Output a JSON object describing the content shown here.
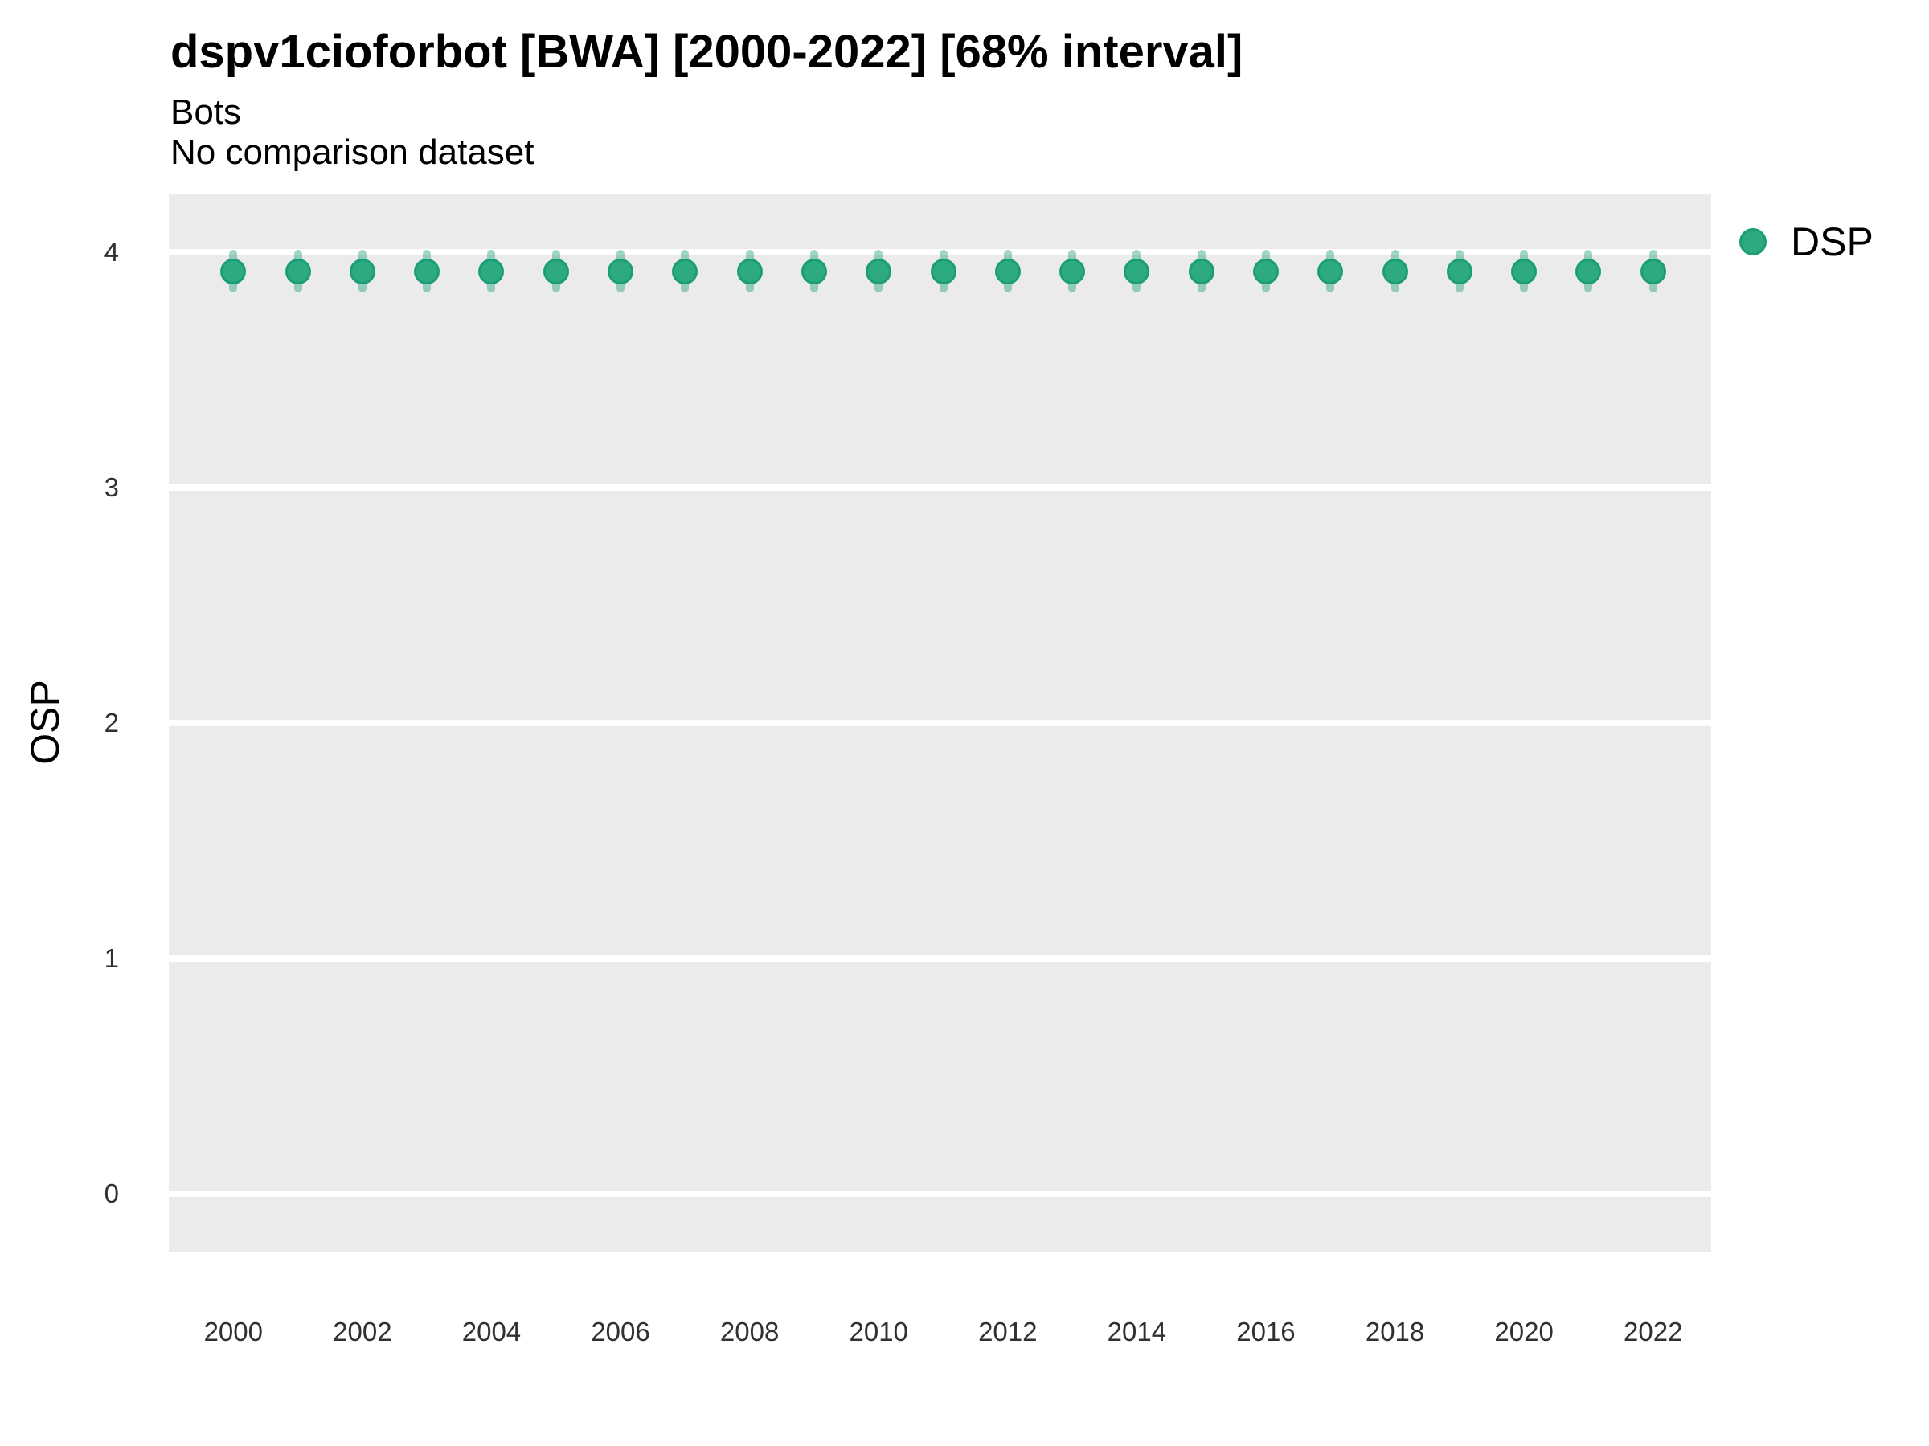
{
  "chart": {
    "title": "dspv1cioforbot [BWA] [2000-2022] [68% interval]",
    "subtitle1": "Bots",
    "subtitle2": "No comparison dataset",
    "y_axis_label": "OSP",
    "legend": {
      "label": "DSP"
    }
  },
  "chart_data": {
    "type": "scatter",
    "variant": "pointrange",
    "title": "dspv1cioforbot [BWA] [2000-2022] [68% interval]",
    "subtitle": [
      "Bots",
      "No comparison dataset"
    ],
    "xlabel": "",
    "ylabel": "OSP",
    "legend_position": "right",
    "grid": true,
    "interval_label": "68% interval",
    "x": [
      2000,
      2001,
      2002,
      2003,
      2004,
      2005,
      2006,
      2007,
      2008,
      2009,
      2010,
      2011,
      2012,
      2013,
      2014,
      2015,
      2016,
      2017,
      2018,
      2019,
      2020,
      2021,
      2022
    ],
    "series": [
      {
        "name": "DSP",
        "values": [
          3.92,
          3.92,
          3.92,
          3.92,
          3.92,
          3.92,
          3.92,
          3.92,
          3.92,
          3.92,
          3.92,
          3.92,
          3.92,
          3.92,
          3.92,
          3.92,
          3.92,
          3.92,
          3.92,
          3.92,
          3.92,
          3.92,
          3.92
        ],
        "interval_low": [
          3.83,
          3.83,
          3.83,
          3.83,
          3.83,
          3.83,
          3.83,
          3.83,
          3.83,
          3.83,
          3.83,
          3.83,
          3.83,
          3.83,
          3.83,
          3.83,
          3.83,
          3.83,
          3.83,
          3.83,
          3.83,
          3.83,
          3.83
        ],
        "interval_high": [
          4.01,
          4.01,
          4.01,
          4.01,
          4.01,
          4.01,
          4.01,
          4.01,
          4.01,
          4.01,
          4.01,
          4.01,
          4.01,
          4.01,
          4.01,
          4.01,
          4.01,
          4.01,
          4.01,
          4.01,
          4.01,
          4.01,
          4.01
        ]
      }
    ],
    "x_ticks": [
      2000,
      2002,
      2004,
      2006,
      2008,
      2010,
      2012,
      2014,
      2016,
      2018,
      2020,
      2022
    ],
    "y_ticks": [
      0,
      1,
      2,
      3,
      4
    ],
    "x_domain": [
      1999.0,
      2022.9
    ],
    "y_domain": [
      -0.25,
      4.25
    ],
    "colors": {
      "point_fill": "#2daa80",
      "point_stroke": "#1b9e77",
      "interval": "rgba(27,158,119,0.42)",
      "panel_bg": "#ebebeb",
      "gridline": "#ffffff"
    }
  }
}
